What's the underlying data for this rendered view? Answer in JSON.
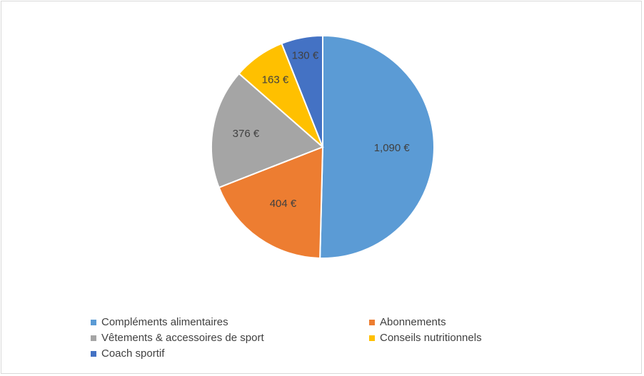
{
  "chart_data": {
    "type": "pie",
    "title": "",
    "currency": "€",
    "legend_position": "bottom",
    "slices": [
      {
        "name": "Compléments alimentaires",
        "value": 1090,
        "label": "1,090 €",
        "color": "#5B9BD5"
      },
      {
        "name": "Abonnements",
        "value": 404,
        "label": "404 €",
        "color": "#ED7D31"
      },
      {
        "name": "Vêtements & accessoires de sport",
        "value": 376,
        "label": "376 €",
        "color": "#A5A5A5"
      },
      {
        "name": "Conseils nutritionnels",
        "value": 163,
        "label": "163 €",
        "color": "#FFC000"
      },
      {
        "name": "Coach sportif",
        "value": 130,
        "label": "130 €",
        "color": "#4472C4"
      }
    ]
  }
}
